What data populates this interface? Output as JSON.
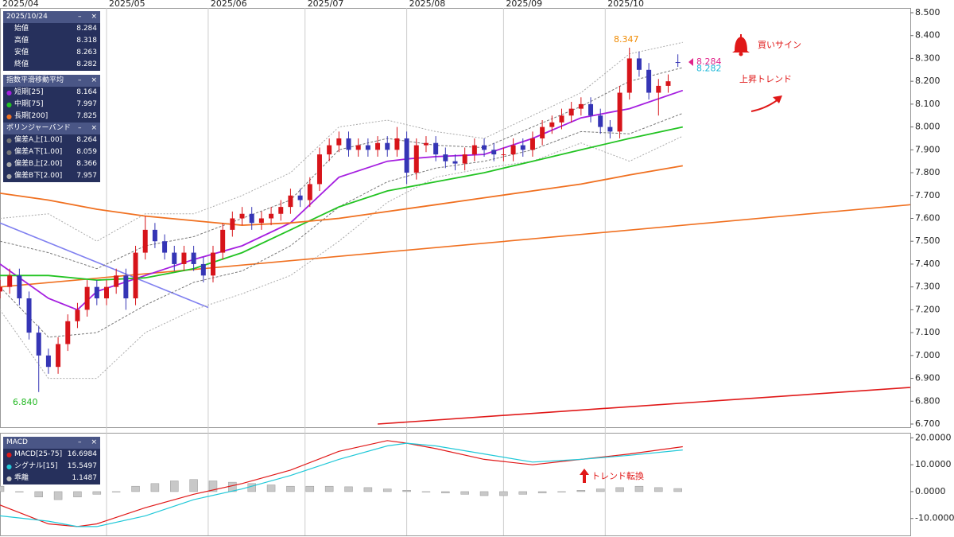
{
  "chart_data": [
    {
      "type": "candlestick",
      "xlim": [
        0,
        188
      ],
      "xticks": [
        {
          "value": 0,
          "label": "2025/04"
        },
        {
          "value": 22,
          "label": "2025/05"
        },
        {
          "value": 43,
          "label": "2025/06"
        },
        {
          "value": 63,
          "label": "2025/07"
        },
        {
          "value": 84,
          "label": "2025/08"
        },
        {
          "value": 104,
          "label": "2025/09"
        },
        {
          "value": 125,
          "label": "2025/10"
        }
      ],
      "ylim": [
        6.7,
        8.5
      ],
      "yticks": [
        {
          "value": 6.7,
          "label": "6.700"
        },
        {
          "value": 6.8,
          "label": "6.800"
        },
        {
          "value": 6.9,
          "label": "6.900"
        },
        {
          "value": 7.0,
          "label": "7.000"
        },
        {
          "value": 7.1,
          "label": "7.100"
        },
        {
          "value": 7.2,
          "label": "7.200"
        },
        {
          "value": 7.3,
          "label": "7.300"
        },
        {
          "value": 7.4,
          "label": "7.400"
        },
        {
          "value": 7.5,
          "label": "7.500"
        },
        {
          "value": 7.6,
          "label": "7.600"
        },
        {
          "value": 7.7,
          "label": "7.700"
        },
        {
          "value": 7.8,
          "label": "7.800"
        },
        {
          "value": 7.9,
          "label": "7.900"
        },
        {
          "value": 8.0,
          "label": "8.000"
        },
        {
          "value": 8.1,
          "label": "8.100"
        },
        {
          "value": 8.2,
          "label": "8.200"
        },
        {
          "value": 8.3,
          "label": "8.300"
        },
        {
          "value": 8.4,
          "label": "8.400"
        },
        {
          "value": 8.5,
          "label": "8.500"
        }
      ],
      "grid": "x",
      "up_color": "#d7141a",
      "down_color": "#3535b5",
      "x": [
        0,
        2,
        4,
        6,
        8,
        10,
        12,
        14,
        16,
        18,
        20,
        22,
        24,
        26,
        28,
        30,
        32,
        34,
        36,
        38,
        40,
        42,
        44,
        46,
        48,
        50,
        52,
        54,
        56,
        58,
        60,
        62,
        64,
        66,
        68,
        70,
        72,
        74,
        76,
        78,
        80,
        82,
        84,
        86,
        88,
        90,
        92,
        94,
        96,
        98,
        100,
        102,
        104,
        106,
        108,
        110,
        112,
        114,
        116,
        118,
        120,
        122,
        124,
        126,
        128,
        130,
        132,
        134,
        136,
        138,
        140
      ],
      "open": [
        7.28,
        7.3,
        7.35,
        7.25,
        7.1,
        7.0,
        6.95,
        7.05,
        7.15,
        7.2,
        7.3,
        7.25,
        7.3,
        7.35,
        7.25,
        7.45,
        7.55,
        7.5,
        7.45,
        7.4,
        7.45,
        7.4,
        7.35,
        7.45,
        7.55,
        7.6,
        7.62,
        7.58,
        7.6,
        7.62,
        7.65,
        7.7,
        7.68,
        7.75,
        7.88,
        7.92,
        7.95,
        7.9,
        7.92,
        7.9,
        7.93,
        7.9,
        7.95,
        7.8,
        7.92,
        7.93,
        7.88,
        7.85,
        7.84,
        7.88,
        7.92,
        7.9,
        7.88,
        7.88,
        7.92,
        7.9,
        7.95,
        8.0,
        8.02,
        8.05,
        8.08,
        8.1,
        8.05,
        8.0,
        7.98,
        8.15,
        8.3,
        8.25,
        8.15,
        8.18,
        8.284
      ],
      "high": [
        7.33,
        7.38,
        7.38,
        7.28,
        7.13,
        7.03,
        7.08,
        7.18,
        7.23,
        7.33,
        7.33,
        7.33,
        7.38,
        7.38,
        7.48,
        7.61,
        7.58,
        7.53,
        7.48,
        7.48,
        7.48,
        7.43,
        7.48,
        7.58,
        7.63,
        7.65,
        7.65,
        7.63,
        7.65,
        7.68,
        7.73,
        7.73,
        7.78,
        7.91,
        7.95,
        7.98,
        7.98,
        7.95,
        7.95,
        7.96,
        7.96,
        8.0,
        7.98,
        7.95,
        7.96,
        7.96,
        7.91,
        7.88,
        7.91,
        7.95,
        7.95,
        7.93,
        7.91,
        7.95,
        7.95,
        7.98,
        8.03,
        8.05,
        8.08,
        8.11,
        8.13,
        8.13,
        8.08,
        8.03,
        8.18,
        8.347,
        8.33,
        8.28,
        8.21,
        8.23,
        8.318
      ],
      "low": [
        7.25,
        7.27,
        7.22,
        7.07,
        6.84,
        6.92,
        6.92,
        7.02,
        7.12,
        7.17,
        7.22,
        7.22,
        7.27,
        7.2,
        7.22,
        7.42,
        7.47,
        7.42,
        7.37,
        7.37,
        7.37,
        7.32,
        7.32,
        7.42,
        7.52,
        7.57,
        7.55,
        7.55,
        7.57,
        7.59,
        7.62,
        7.65,
        7.65,
        7.72,
        7.85,
        7.89,
        7.87,
        7.87,
        7.87,
        7.87,
        7.87,
        7.87,
        7.75,
        7.77,
        7.89,
        7.85,
        7.82,
        7.81,
        7.81,
        7.85,
        7.87,
        7.85,
        7.85,
        7.85,
        7.87,
        7.87,
        7.92,
        7.97,
        7.99,
        8.02,
        8.05,
        8.02,
        7.97,
        7.95,
        7.95,
        8.12,
        8.22,
        8.12,
        8.05,
        8.15,
        8.263
      ],
      "close": [
        7.3,
        7.35,
        7.25,
        7.1,
        7.0,
        6.95,
        7.05,
        7.15,
        7.2,
        7.3,
        7.25,
        7.3,
        7.35,
        7.25,
        7.45,
        7.55,
        7.5,
        7.45,
        7.4,
        7.45,
        7.4,
        7.35,
        7.45,
        7.55,
        7.6,
        7.62,
        7.58,
        7.6,
        7.62,
        7.65,
        7.7,
        7.68,
        7.75,
        7.88,
        7.92,
        7.95,
        7.9,
        7.92,
        7.9,
        7.93,
        7.9,
        7.95,
        7.8,
        7.92,
        7.93,
        7.88,
        7.85,
        7.84,
        7.88,
        7.92,
        7.9,
        7.88,
        7.88,
        7.92,
        7.9,
        7.95,
        8.0,
        8.02,
        8.05,
        8.08,
        8.1,
        8.05,
        8.0,
        7.98,
        8.15,
        8.3,
        8.25,
        8.15,
        8.18,
        8.2,
        8.282
      ],
      "ohlc_panel": {
        "title": "2025/10/24",
        "rows": [
          {
            "label": "始値",
            "value": 8.284
          },
          {
            "label": "高値",
            "value": 8.318
          },
          {
            "label": "安値",
            "value": 8.263
          },
          {
            "label": "終値",
            "value": 8.282
          }
        ]
      },
      "ema": {
        "title": "指数平滑移動平均",
        "series": [
          {
            "name": "短期[25]",
            "color": "#a51fe0",
            "latest": 8.164,
            "x": [
              0,
              10,
              16,
              20,
              30,
              40,
              50,
              60,
              70,
              80,
              84,
              90,
              100,
              110,
              120,
              130,
              141
            ],
            "values": [
              7.4,
              7.25,
              7.2,
              7.28,
              7.35,
              7.42,
              7.48,
              7.58,
              7.78,
              7.85,
              7.86,
              7.87,
              7.88,
              7.95,
              8.04,
              8.08,
              8.16
            ]
          },
          {
            "name": "中期[75]",
            "color": "#22c322",
            "latest": 7.997,
            "x": [
              0,
              10,
              20,
              30,
              40,
              50,
              60,
              70,
              80,
              90,
              100,
              110,
              120,
              130,
              141
            ],
            "values": [
              7.35,
              7.35,
              7.33,
              7.34,
              7.38,
              7.45,
              7.55,
              7.65,
              7.72,
              7.76,
              7.8,
              7.85,
              7.9,
              7.95,
              8.0
            ]
          },
          {
            "name": "長期[200]",
            "color": "#f07020",
            "latest": 7.825,
            "x": [
              0,
              10,
              20,
              30,
              40,
              50,
              60,
              70,
              80,
              90,
              100,
              110,
              120,
              130,
              141
            ],
            "values": [
              7.71,
              7.68,
              7.64,
              7.61,
              7.59,
              7.57,
              7.58,
              7.6,
              7.63,
              7.66,
              7.69,
              7.72,
              7.75,
              7.79,
              7.83
            ]
          }
        ]
      },
      "bollinger": {
        "title": "ボリンジャーバンド",
        "series": [
          {
            "name": "偏差A上[1.00]",
            "color": "#777777",
            "dash": "3,2",
            "latest": 8.264,
            "x": [
              0,
              10,
              20,
              30,
              40,
              50,
              60,
              70,
              80,
              90,
              100,
              110,
              120,
              130,
              141
            ],
            "values": [
              7.5,
              7.45,
              7.38,
              7.48,
              7.52,
              7.6,
              7.68,
              7.9,
              7.95,
              7.92,
              7.91,
              8.0,
              8.09,
              8.2,
              8.26
            ]
          },
          {
            "name": "偏差A下[1.00]",
            "color": "#777777",
            "dash": "3,2",
            "latest": 8.059,
            "x": [
              0,
              10,
              20,
              30,
              40,
              50,
              60,
              70,
              80,
              90,
              100,
              110,
              120,
              130,
              141
            ],
            "values": [
              7.3,
              7.08,
              7.1,
              7.22,
              7.32,
              7.37,
              7.48,
              7.65,
              7.76,
              7.82,
              7.85,
              7.9,
              7.98,
              7.97,
              8.06
            ]
          },
          {
            "name": "偏差B上[2.00]",
            "color": "#aaaaaa",
            "dash": "2,2",
            "latest": 8.366,
            "x": [
              0,
              10,
              20,
              30,
              40,
              50,
              60,
              70,
              80,
              90,
              100,
              110,
              120,
              130,
              141
            ],
            "values": [
              7.6,
              7.62,
              7.5,
              7.62,
              7.62,
              7.7,
              7.8,
              8.0,
              8.03,
              7.98,
              7.95,
              8.05,
              8.15,
              8.32,
              8.37
            ]
          },
          {
            "name": "偏差B下[2.00]",
            "color": "#aaaaaa",
            "dash": "2,2",
            "latest": 7.957,
            "x": [
              0,
              10,
              20,
              30,
              40,
              50,
              60,
              70,
              80,
              90,
              100,
              110,
              120,
              130,
              141
            ],
            "values": [
              7.2,
              6.9,
              6.9,
              7.1,
              7.2,
              7.27,
              7.35,
              7.5,
              7.67,
              7.78,
              7.82,
              7.85,
              7.93,
              7.85,
              7.96
            ]
          }
        ]
      },
      "trendlines": [
        {
          "color": "#f07020",
          "x": [
            0,
            188
          ],
          "values": [
            7.3,
            7.66
          ]
        },
        {
          "color": "#e01818",
          "x": [
            78,
            188
          ],
          "values": [
            6.7,
            6.86
          ]
        },
        {
          "color": "#8080f0",
          "x": [
            0,
            43
          ],
          "values": [
            7.58,
            7.21
          ]
        }
      ],
      "annotations": [
        {
          "value": 8.347,
          "label": "8.347",
          "color": "#f08a00"
        },
        {
          "value": 6.84,
          "label": "6.840",
          "color": "#22b822"
        }
      ],
      "price_markers": [
        {
          "value": 8.284,
          "color": "#e0248a"
        },
        {
          "value": 8.282,
          "color": "#1fb8d8"
        }
      ],
      "notes": [
        "買いサイン",
        "上昇トレンド"
      ]
    },
    {
      "type": "macd",
      "title": "MACD",
      "xlim": [
        0,
        188
      ],
      "ylim": [
        -16,
        21
      ],
      "yticks": [
        {
          "value": -10,
          "label": "-10.0000"
        },
        {
          "value": 0,
          "label": "0.0000"
        },
        {
          "value": 10,
          "label": "10.0000"
        },
        {
          "value": 20,
          "label": "20.0000"
        }
      ],
      "series": [
        {
          "name": "MACD[25-75]",
          "color": "#e01818",
          "latest": 16.6984,
          "x": [
            0,
            10,
            16,
            20,
            30,
            40,
            50,
            60,
            70,
            80,
            84,
            90,
            100,
            110,
            120,
            130,
            141
          ],
          "values": [
            -5,
            -12,
            -13,
            -12,
            -6,
            -1,
            3,
            8,
            15,
            19,
            18,
            16,
            12,
            10,
            12,
            14,
            16.7
          ]
        },
        {
          "name": "シグナル[15]",
          "color": "#20c8d8",
          "latest": 15.5497,
          "x": [
            0,
            10,
            16,
            20,
            30,
            40,
            50,
            60,
            70,
            80,
            84,
            90,
            100,
            110,
            120,
            130,
            141
          ],
          "values": [
            -9,
            -11,
            -13,
            -13,
            -9,
            -3,
            1,
            6,
            12,
            17,
            18,
            17,
            14,
            11,
            12,
            13.5,
            15.5
          ]
        }
      ],
      "histogram": {
        "name": "乖離",
        "color": "#c8c8c8",
        "latest": 1.1487,
        "x": [
          0,
          4,
          8,
          12,
          16,
          20,
          24,
          28,
          32,
          36,
          40,
          44,
          48,
          52,
          56,
          60,
          64,
          68,
          72,
          76,
          80,
          84,
          88,
          92,
          96,
          100,
          104,
          108,
          112,
          116,
          120,
          124,
          128,
          132,
          136,
          140
        ],
        "values": [
          2,
          0,
          -2,
          -3,
          -2,
          -1,
          0,
          2,
          3,
          4,
          4.5,
          4,
          3.5,
          3,
          2.5,
          2,
          2,
          2,
          1.8,
          1.5,
          1,
          0.5,
          0,
          -0.5,
          -1,
          -1.5,
          -1.5,
          -1,
          -0.5,
          0,
          0.5,
          1,
          1.5,
          2,
          1.5,
          1.1487
        ]
      },
      "notes": [
        "トレンド転換"
      ]
    }
  ],
  "panel_controls": {
    "minimize": "–",
    "close": "×"
  }
}
